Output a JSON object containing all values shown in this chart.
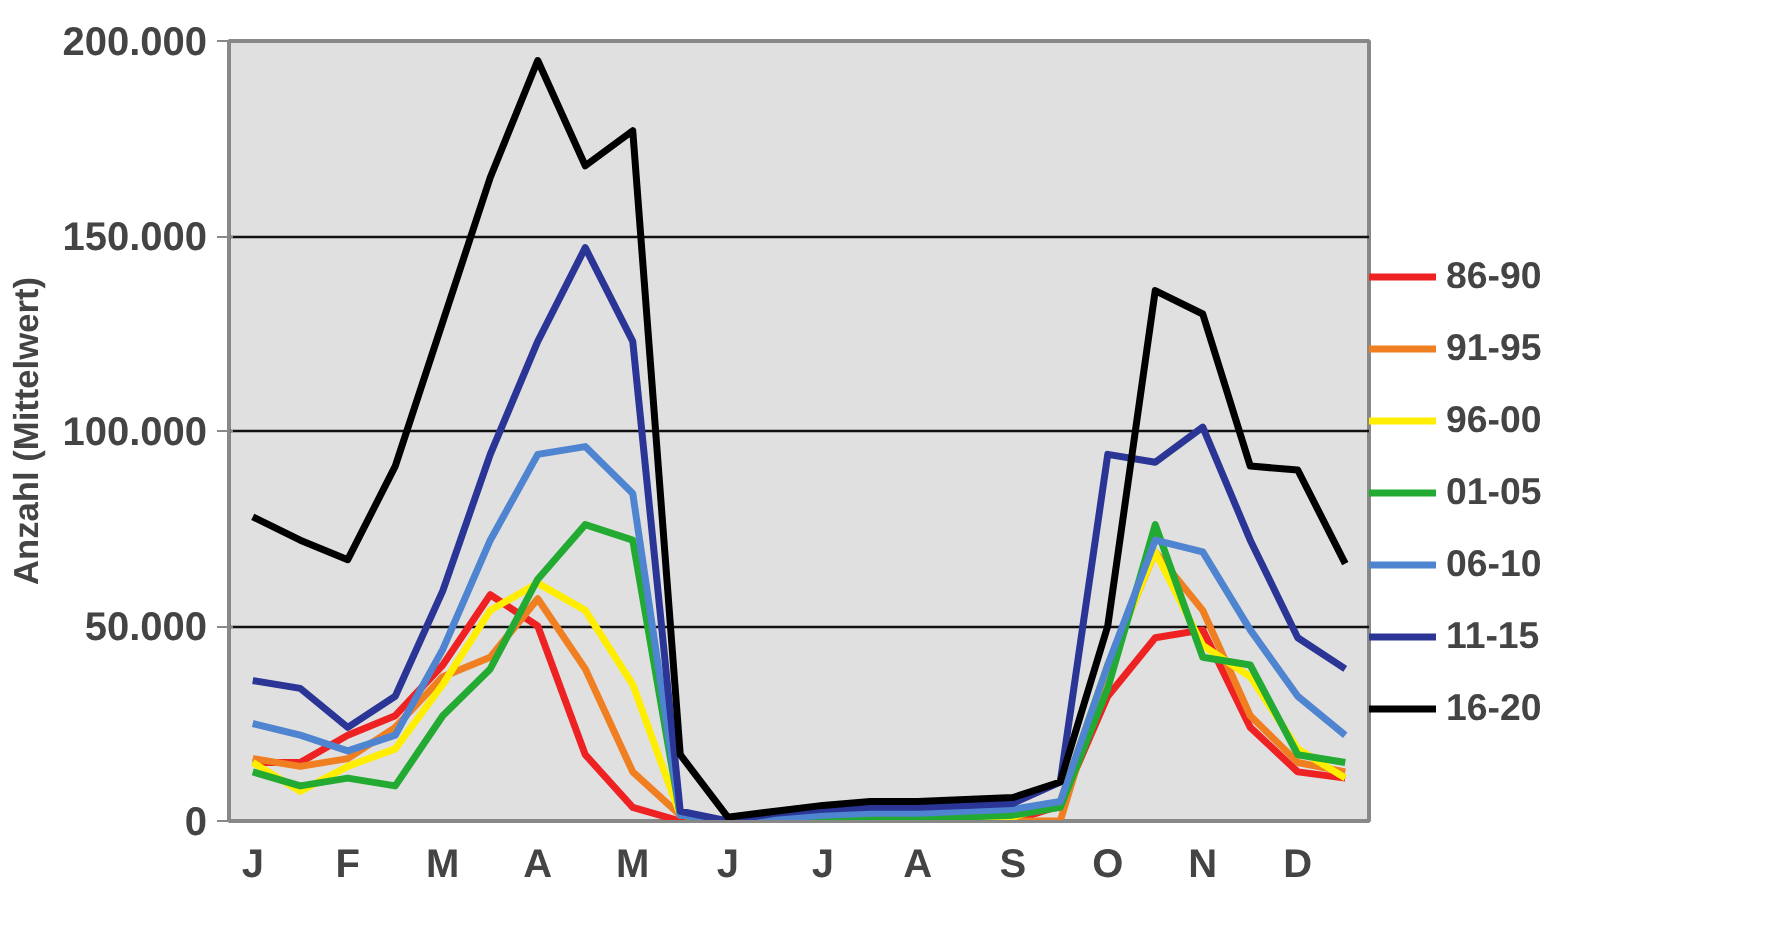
{
  "chart_data": {
    "type": "line",
    "ylabel": "Anzahl (Mittelwert)",
    "categories": [
      "J",
      null,
      "F",
      null,
      "M",
      null,
      "A",
      null,
      "M",
      null,
      "J",
      null,
      "J",
      null,
      "A",
      null,
      "S",
      null,
      "O",
      null,
      "N",
      null,
      "D",
      null
    ],
    "ylim": [
      0,
      200000
    ],
    "yticks": [
      {
        "value": 0,
        "label": "0"
      },
      {
        "value": 50000,
        "label": "50.000"
      },
      {
        "value": 100000,
        "label": "100.000"
      },
      {
        "value": 150000,
        "label": "150.000"
      },
      {
        "value": 200000,
        "label": "200.000"
      }
    ],
    "grid": "y",
    "legend": "right",
    "marker": "none",
    "line_style": "solid",
    "series": [
      {
        "name": "86-90",
        "color": "#ee2222",
        "values": [
          15000,
          15000,
          22000,
          27000,
          40000,
          58000,
          50000,
          17000,
          3500,
          0,
          0,
          0,
          0,
          0,
          0,
          0,
          0,
          4000,
          32000,
          47000,
          49000,
          24000,
          12600,
          11000
        ]
      },
      {
        "name": "91-95",
        "color": "#f07f22",
        "values": [
          16000,
          14000,
          16000,
          24000,
          37000,
          42000,
          57000,
          39000,
          12600,
          1500,
          0,
          0,
          0,
          0,
          0,
          0,
          0,
          0,
          40000,
          69000,
          54000,
          27000,
          15000,
          12600
        ]
      },
      {
        "name": "96-00",
        "color": "#ffee00",
        "values": [
          15000,
          7600,
          14000,
          18500,
          35000,
          54000,
          61000,
          54000,
          35000,
          1500,
          0,
          0,
          0,
          0,
          0,
          0,
          1000,
          5000,
          40000,
          69000,
          45000,
          37000,
          18500,
          11000
        ]
      },
      {
        "name": "01-05",
        "color": "#22aa33",
        "values": [
          12600,
          9000,
          11000,
          9000,
          27000,
          39000,
          62000,
          76000,
          72000,
          1500,
          0,
          0,
          500,
          500,
          500,
          1000,
          1500,
          3500,
          34000,
          76000,
          42000,
          40000,
          17000,
          15000
        ]
      },
      {
        "name": "06-10",
        "color": "#4f84d0",
        "values": [
          25000,
          22000,
          18000,
          22000,
          44000,
          72000,
          94000,
          96000,
          84000,
          1500,
          0,
          500,
          1500,
          2000,
          2000,
          2500,
          3000,
          5000,
          40000,
          72000,
          69000,
          49000,
          32000,
          22000
        ]
      },
      {
        "name": "11-15",
        "color": "#2a3596",
        "values": [
          36000,
          34000,
          24000,
          32000,
          59000,
          94000,
          123000,
          147000,
          123000,
          2500,
          0,
          2000,
          3000,
          3500,
          3500,
          4000,
          4500,
          10000,
          94000,
          92000,
          101000,
          72000,
          47000,
          39000
        ]
      },
      {
        "name": "16-20",
        "color": "#000000",
        "values": [
          78000,
          72000,
          67000,
          91000,
          128000,
          165000,
          195000,
          168000,
          177000,
          17000,
          1000,
          2500,
          4000,
          5000,
          5000,
          5500,
          6000,
          10000,
          50000,
          136000,
          130000,
          91000,
          90000,
          66000
        ]
      }
    ]
  }
}
